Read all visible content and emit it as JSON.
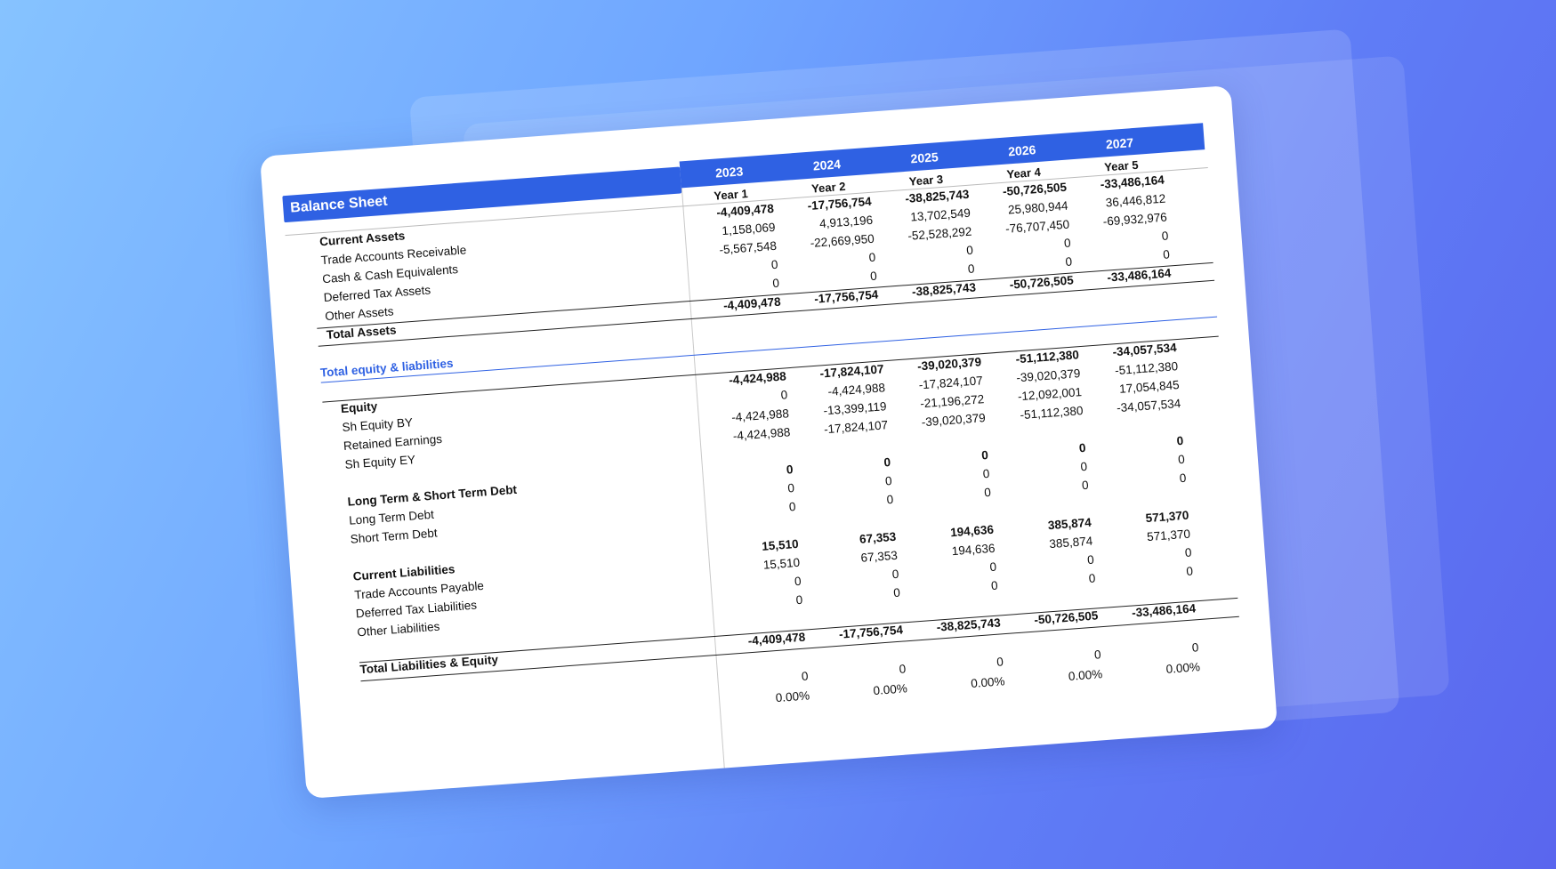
{
  "title": "Balance Sheet",
  "columns": [
    {
      "year": "2023",
      "label": "Year 1"
    },
    {
      "year": "2024",
      "label": "Year 2"
    },
    {
      "year": "2025",
      "label": "Year 3"
    },
    {
      "year": "2026",
      "label": "Year 4"
    },
    {
      "year": "2027",
      "label": "Year 5"
    }
  ],
  "rows": [
    {
      "label": "Current Assets",
      "bold": true,
      "values": [
        "-4,409,478",
        "-17,756,754",
        "-38,825,743",
        "-50,726,505",
        "-33,486,164"
      ]
    },
    {
      "label": "Trade Accounts Receivable",
      "values": [
        "1,158,069",
        "4,913,196",
        "13,702,549",
        "25,980,944",
        "36,446,812"
      ]
    },
    {
      "label": "Cash & Cash Equivalents",
      "values": [
        "-5,567,548",
        "-22,669,950",
        "-52,528,292",
        "-76,707,450",
        "-69,932,976"
      ]
    },
    {
      "label": "Deferred Tax Assets",
      "values": [
        "0",
        "0",
        "0",
        "0",
        "0"
      ]
    },
    {
      "label": "Other Assets",
      "values": [
        "0",
        "0",
        "0",
        "0",
        "0"
      ]
    },
    {
      "label": "Total Assets",
      "bold": true,
      "values": [
        "-4,409,478",
        "-17,756,754",
        "-38,825,743",
        "-50,726,505",
        "-33,486,164"
      ]
    },
    {
      "label": "Total equity & liabilities",
      "blue": true,
      "values": [
        "",
        "",
        "",
        "",
        ""
      ]
    },
    {
      "label": "Equity",
      "bold": true,
      "values": [
        "-4,424,988",
        "-17,824,107",
        "-39,020,379",
        "-51,112,380",
        "-34,057,534"
      ]
    },
    {
      "label": "Sh Equity BY",
      "values": [
        "0",
        "-4,424,988",
        "-17,824,107",
        "-39,020,379",
        "-51,112,380"
      ]
    },
    {
      "label": "Retained Earnings",
      "values": [
        "-4,424,988",
        "-13,399,119",
        "-21,196,272",
        "-12,092,001",
        "17,054,845"
      ]
    },
    {
      "label": "Sh Equity EY",
      "values": [
        "-4,424,988",
        "-17,824,107",
        "-39,020,379",
        "-51,112,380",
        "-34,057,534"
      ]
    },
    {
      "label": "Long Term & Short Term Debt",
      "bold": true,
      "values": [
        "0",
        "0",
        "0",
        "0",
        "0"
      ]
    },
    {
      "label": "Long Term Debt",
      "values": [
        "0",
        "0",
        "0",
        "0",
        "0"
      ]
    },
    {
      "label": "Short Term Debt",
      "values": [
        "0",
        "0",
        "0",
        "0",
        "0"
      ]
    },
    {
      "label": "Current Liabilities",
      "bold": true,
      "values": [
        "15,510",
        "67,353",
        "194,636",
        "385,874",
        "571,370"
      ]
    },
    {
      "label": "Trade Accounts Payable",
      "values": [
        "15,510",
        "67,353",
        "194,636",
        "385,874",
        "571,370"
      ]
    },
    {
      "label": "Deferred Tax Liabilities",
      "values": [
        "0",
        "0",
        "0",
        "0",
        "0"
      ]
    },
    {
      "label": "Other Liabilities",
      "values": [
        "0",
        "0",
        "0",
        "0",
        "0"
      ]
    },
    {
      "label": "Total Liabilities & Equity",
      "bold": true,
      "values": [
        "-4,409,478",
        "-17,756,754",
        "-38,825,743",
        "-50,726,505",
        "-33,486,164"
      ]
    }
  ],
  "check_row": [
    "0",
    "0",
    "0",
    "0",
    "0"
  ],
  "check_pct": [
    "0.00%",
    "0.00%",
    "0.00%",
    "0.00%",
    "0.00%"
  ]
}
